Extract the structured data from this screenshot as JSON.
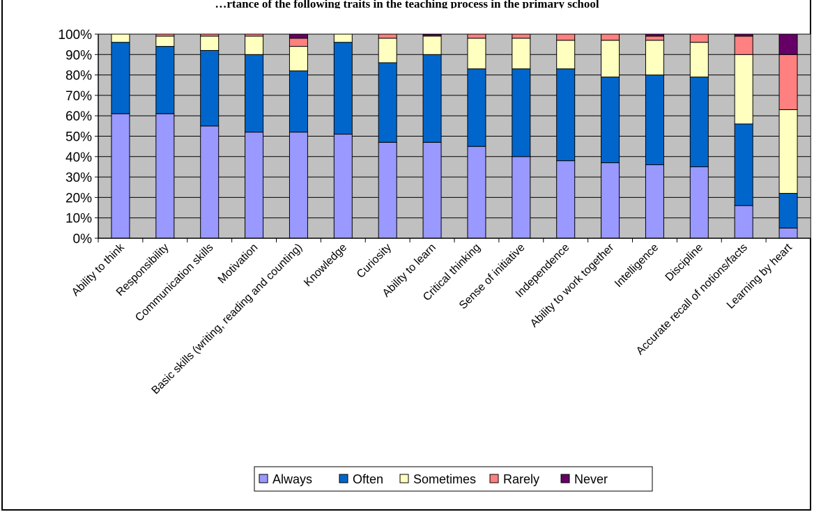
{
  "chart_data": {
    "type": "bar",
    "stacked": true,
    "percent_stacked": true,
    "title": "…rtance of the following traits in the teaching process in the primary school",
    "ylim": [
      0,
      100
    ],
    "y_ticks": [
      "0%",
      "10%",
      "20%",
      "30%",
      "40%",
      "50%",
      "60%",
      "70%",
      "80%",
      "90%",
      "100%"
    ],
    "categories": [
      "Ability to think",
      "Responsibility",
      "Communication skills",
      "Motivation",
      "Basic skills (writing, reading and counting)",
      "Knowledge",
      "Curiosity",
      "Ability to learn",
      "Critical thinking",
      "Sense of initiative",
      "Independence",
      "Ability to work together",
      "Intelligence",
      "Discipline",
      "Accurate recall of notions/facts",
      "Learning by heart"
    ],
    "series": [
      {
        "name": "Always",
        "color": "#9999ff",
        "values": [
          61,
          61,
          55,
          52,
          52,
          51,
          47,
          47,
          45,
          40,
          38,
          37,
          36,
          35,
          16,
          5
        ]
      },
      {
        "name": "Often",
        "color": "#0066cc",
        "values": [
          35,
          33,
          37,
          38,
          30,
          45,
          39,
          43,
          38,
          43,
          45,
          42,
          44,
          44,
          40,
          17
        ]
      },
      {
        "name": "Sometimes",
        "color": "#ffffc0",
        "values": [
          4,
          5,
          7,
          9,
          12,
          4,
          12,
          9,
          15,
          15,
          14,
          18,
          17,
          17,
          34,
          41
        ]
      },
      {
        "name": "Rarely",
        "color": "#ff8080",
        "values": [
          0,
          1,
          1,
          1,
          4,
          0,
          2,
          0.5,
          2,
          2,
          3,
          3,
          2,
          4,
          9,
          27
        ]
      },
      {
        "name": "Never",
        "color": "#660066",
        "values": [
          0,
          0,
          0,
          0,
          2,
          0,
          0,
          0.5,
          0,
          0,
          0,
          0,
          1,
          0,
          1,
          10
        ]
      }
    ],
    "grid": true,
    "plot_background": "#c0c0c0",
    "legend_position": "bottom"
  }
}
